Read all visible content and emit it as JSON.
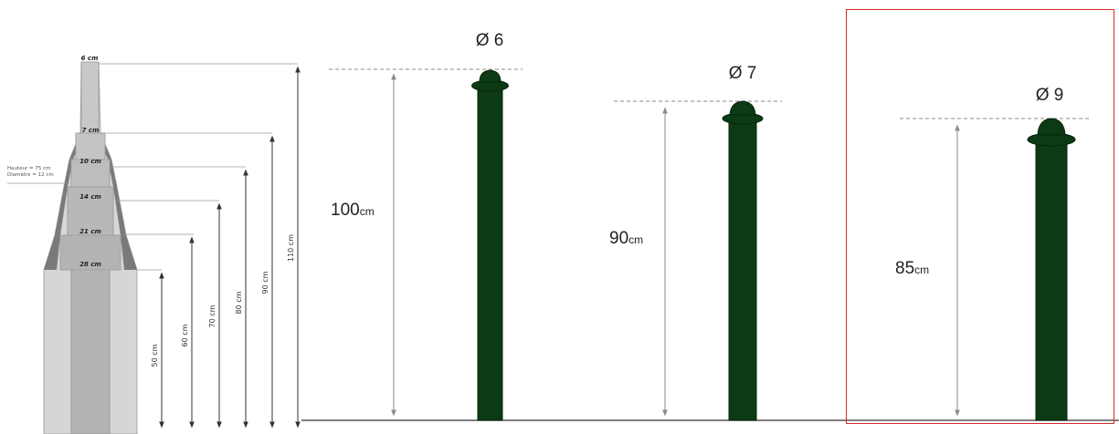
{
  "colors": {
    "post": "#0c3a14",
    "post_outline": "#06240b",
    "highlight": "#d42a2a",
    "dimension_line": "#9a9a9a",
    "ground": "#555555",
    "spire_light": "#d6d6d6",
    "spire_mid": "#b3b3b3",
    "spire_dark": "#7a7a7a",
    "spire_label": "#222222"
  },
  "spire": {
    "sections": [
      "6 cm",
      "7 cm",
      "10 cm",
      "14 cm",
      "21 cm",
      "28 cm"
    ],
    "note_lines": [
      "Hauteur = 75 cm",
      "Diamètre = 12 cm"
    ],
    "heights": [
      "50 cm",
      "60 cm",
      "70 cm",
      "80 cm",
      "90 cm",
      "110 cm"
    ]
  },
  "posts": [
    {
      "diameter": "Ø 6",
      "height_value": "100",
      "height_unit": "cm",
      "highlighted": false
    },
    {
      "diameter": "Ø 7",
      "height_value": "90",
      "height_unit": "cm",
      "highlighted": false
    },
    {
      "diameter": "Ø 9",
      "height_value": "85",
      "height_unit": "cm",
      "highlighted": true
    }
  ]
}
